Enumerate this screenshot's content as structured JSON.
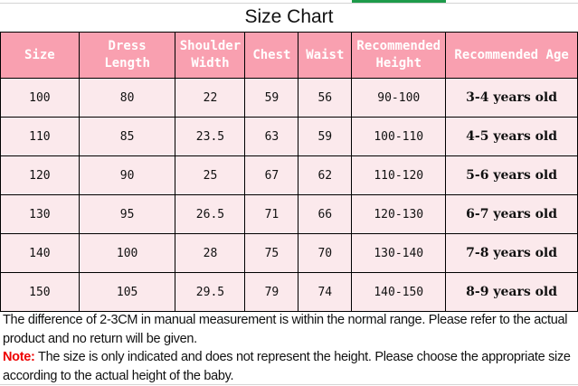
{
  "title": "Size Chart",
  "headers": [
    [
      "Size"
    ],
    [
      "Dress",
      "Length"
    ],
    [
      "Shoulder",
      "Width"
    ],
    [
      "Chest"
    ],
    [
      "Waist"
    ],
    [
      "Recommended",
      "Height"
    ],
    [
      "Recommended Age"
    ]
  ],
  "rows": [
    [
      "100",
      "80",
      "22",
      "59",
      "56",
      "90-100",
      "3-4 years old"
    ],
    [
      "110",
      "85",
      "23.5",
      "63",
      "59",
      "100-110",
      "4-5 years old"
    ],
    [
      "120",
      "90",
      "25",
      "67",
      "62",
      "110-120",
      "5-6 years old"
    ],
    [
      "130",
      "95",
      "26.5",
      "71",
      "66",
      "120-130",
      "6-7 years old"
    ],
    [
      "140",
      "100",
      "28",
      "75",
      "70",
      "130-140",
      "7-8 years old"
    ],
    [
      "150",
      "105",
      "29.5",
      "79",
      "74",
      "140-150",
      "8-9 years old"
    ]
  ],
  "footer": {
    "line1": "The difference of 2-3CM in manual measurement is within the normal range. Please refer to the actual product and no return will be given.",
    "note_label": "Note:",
    "note_text": " The size is only indicated and does not represent the height. Please choose the appropriate size according to the actual height of the baby."
  },
  "colors": {
    "header_bg": "#f9a0b0",
    "row_bg": "#fbe9ec",
    "note": "#ee0000"
  }
}
